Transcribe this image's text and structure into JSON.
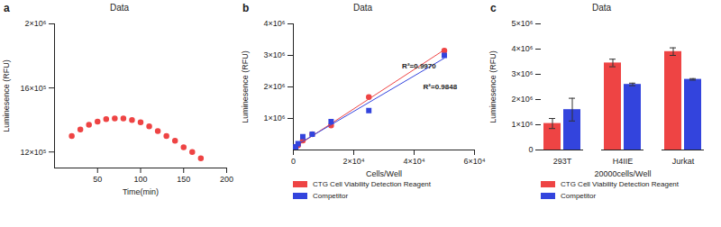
{
  "chart_data": [
    {
      "panel": "a",
      "type": "scatter",
      "title": "Data",
      "x_label": "Time(min)",
      "y_label": "Luminesence (RFU)",
      "x": [
        20,
        30,
        40,
        50,
        60,
        70,
        80,
        90,
        100,
        110,
        120,
        130,
        140,
        150,
        160,
        170
      ],
      "series": [
        {
          "name": "Data",
          "color": "#ee4444",
          "marker": "circle",
          "values": [
            1300000,
            1340000,
            1370000,
            1390000,
            1405000,
            1410000,
            1410000,
            1400000,
            1385000,
            1360000,
            1330000,
            1300000,
            1270000,
            1230000,
            1200000,
            1160000
          ]
        }
      ],
      "xlim": [
        0,
        200
      ],
      "xticks": [
        50,
        100,
        150,
        200
      ],
      "ylim": [
        1100000,
        2000000
      ],
      "yticks": [
        {
          "value": 1200000,
          "label": "12×10⁵"
        },
        {
          "value": 1600000,
          "label": "16×10⁵"
        },
        {
          "value": 2000000,
          "label": "2×10⁶"
        }
      ],
      "grid": false
    },
    {
      "panel": "b",
      "type": "regression",
      "title": "Data",
      "x_label": "Cells/Well",
      "y_label": "Luminesence (RFU)",
      "x": [
        0,
        781,
        1562,
        3125,
        6250,
        12500,
        25000,
        50000
      ],
      "series": [
        {
          "name": "CTG Cell Viability Detection Reagent",
          "color": "#ee4444",
          "marker": "circle",
          "values": [
            0,
            80000,
            150000,
            300000,
            500000,
            780000,
            1680000,
            3150000
          ]
        },
        {
          "name": "Competitor",
          "color": "#3344dd",
          "marker": "square",
          "values": [
            0,
            100000,
            200000,
            420000,
            500000,
            900000,
            1250000,
            3000000
          ]
        }
      ],
      "annotations": [
        {
          "text": "R²=0.9970",
          "x": 36000,
          "y": 2650000,
          "color": "#222222"
        },
        {
          "text": "R²=0.9848",
          "x": 43000,
          "y": 2000000,
          "color": "#222222"
        }
      ],
      "xlim": [
        0,
        60000
      ],
      "xticks": [
        0,
        {
          "value": 20000,
          "label": "2×10⁴"
        },
        {
          "value": 40000,
          "label": "4×10⁴"
        },
        {
          "value": 60000,
          "label": "6×10⁴"
        }
      ],
      "ylim": [
        0,
        4000000
      ],
      "yticks": [
        {
          "value": 1000000,
          "label": "1×10⁶"
        },
        {
          "value": 2000000,
          "label": "2×10⁶"
        },
        {
          "value": 3000000,
          "label": "3×10⁶"
        },
        {
          "value": 4000000,
          "label": "4×10⁶"
        }
      ],
      "grid": false,
      "legend": "bottom"
    },
    {
      "panel": "c",
      "type": "bar",
      "title": "Data",
      "x_label": "20000cells/Well",
      "y_label": "Luminesence (RFU)",
      "categories": [
        "293T",
        "H4IIE",
        "Jurkat"
      ],
      "series": [
        {
          "name": "CTG Cell Viability Detection Reagent",
          "color": "#ee4444",
          "values": [
            1050000,
            3450000,
            3900000
          ],
          "errors": [
            200000,
            150000,
            150000
          ]
        },
        {
          "name": "Competitor",
          "color": "#3344dd",
          "values": [
            1600000,
            2600000,
            2800000
          ],
          "errors": [
            450000,
            50000,
            30000
          ]
        }
      ],
      "ylim": [
        0,
        5000000
      ],
      "yticks": [
        0,
        {
          "value": 1000000,
          "label": "1×10⁶"
        },
        {
          "value": 2000000,
          "label": "2×10⁶"
        },
        {
          "value": 3000000,
          "label": "3×10⁶"
        },
        {
          "value": 4000000,
          "label": "4×10⁶"
        },
        {
          "value": 5000000,
          "label": "5×10⁶"
        }
      ],
      "grid": false,
      "legend": "bottom"
    }
  ]
}
